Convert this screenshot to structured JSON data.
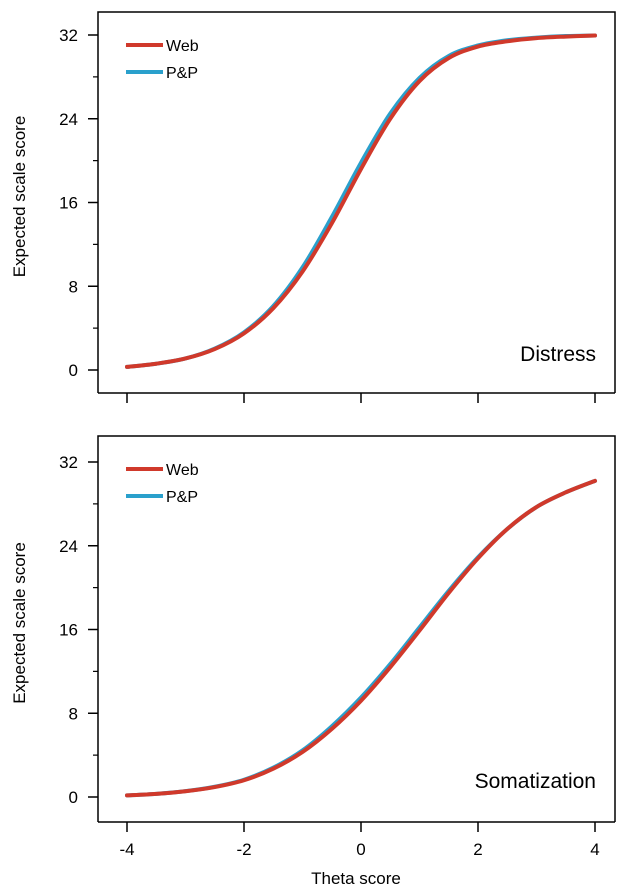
{
  "colors": {
    "web": "#d0392b",
    "pp": "#2aa0cc",
    "axis": "#000000"
  },
  "chart_data": [
    {
      "type": "line",
      "panel_label": "Distress",
      "ylabel": "Expected scale score",
      "xlabel": "",
      "xlim": [
        -4,
        4
      ],
      "ylim": [
        0,
        32
      ],
      "x_ticks": [
        -4,
        -2,
        0,
        2,
        4
      ],
      "x_tick_labels": [
        "",
        "",
        "",
        "",
        ""
      ],
      "y_tick_labels": [
        0,
        8,
        16,
        24,
        32
      ],
      "grid": false,
      "legend": "top-left",
      "x": [
        -4,
        -3.5,
        -3,
        -2.5,
        -2,
        -1.5,
        -1,
        -0.5,
        0,
        0.5,
        1,
        1.5,
        2,
        2.5,
        3,
        3.5,
        4
      ],
      "series": [
        {
          "name": "Web",
          "color": "#d0392b",
          "values": [
            0.3,
            0.6,
            1.1,
            2.0,
            3.5,
            5.9,
            9.4,
            14.0,
            19.2,
            24.0,
            27.6,
            29.8,
            30.9,
            31.4,
            31.7,
            31.85,
            31.95
          ]
        },
        {
          "name": "P&P",
          "color": "#2aa0cc",
          "values": [
            0.3,
            0.6,
            1.1,
            2.05,
            3.6,
            6.1,
            9.8,
            14.6,
            19.8,
            24.5,
            27.9,
            30.0,
            31.0,
            31.5,
            31.75,
            31.9,
            31.95
          ]
        }
      ]
    },
    {
      "type": "line",
      "panel_label": "Somatization",
      "ylabel": "Expected scale score",
      "xlabel": "Theta score",
      "xlim": [
        -4,
        4
      ],
      "ylim": [
        0,
        32
      ],
      "x_ticks": [
        -4,
        -2,
        0,
        2,
        4
      ],
      "x_tick_labels": [
        "-4",
        "-2",
        "0",
        "2",
        "4"
      ],
      "y_tick_labels": [
        0,
        8,
        16,
        24,
        32
      ],
      "grid": false,
      "legend": "top-left",
      "x": [
        -4,
        -3.5,
        -3,
        -2.5,
        -2,
        -1.5,
        -1,
        -0.5,
        0,
        0.5,
        1,
        1.5,
        2,
        2.5,
        3,
        3.5,
        4
      ],
      "series": [
        {
          "name": "Web",
          "color": "#d0392b",
          "values": [
            0.15,
            0.3,
            0.55,
            0.95,
            1.6,
            2.7,
            4.3,
            6.5,
            9.2,
            12.4,
            15.9,
            19.5,
            22.8,
            25.6,
            27.7,
            29.1,
            30.2
          ]
        },
        {
          "name": "P&P",
          "color": "#2aa0cc",
          "values": [
            0.15,
            0.3,
            0.56,
            0.98,
            1.65,
            2.8,
            4.45,
            6.75,
            9.5,
            12.7,
            16.2,
            19.7,
            22.9,
            25.6,
            27.7,
            29.1,
            30.2
          ]
        }
      ]
    }
  ]
}
